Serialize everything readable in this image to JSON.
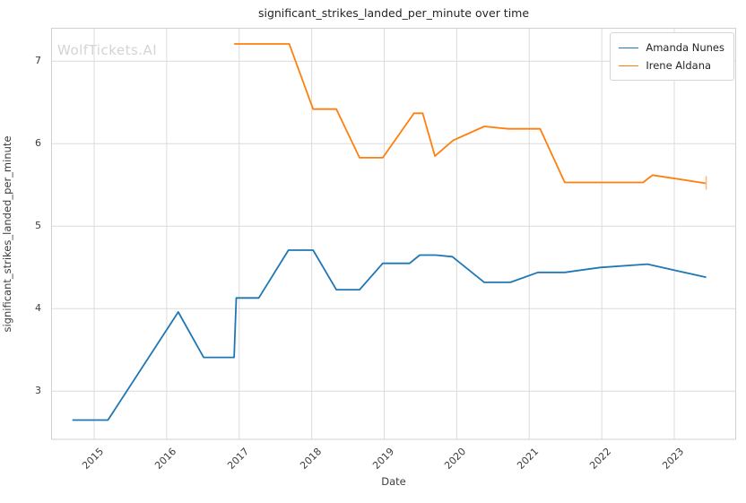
{
  "watermark": "WolfTickets.AI",
  "colors": {
    "series_blue": "#1f77b4",
    "series_orange": "#ff7f0e",
    "grid": "#dcdcdc",
    "spine": "#d0d0d0",
    "end_cap_orange": "#ffb97c"
  },
  "chart_data": {
    "type": "line",
    "title": "significant_strikes_landed_per_minute over time",
    "xlabel": "Date",
    "ylabel": "significant_strikes_landed_per_minute",
    "x_ticks": [
      2015,
      2016,
      2017,
      2018,
      2019,
      2020,
      2021,
      2022,
      2023
    ],
    "y_ticks": [
      3,
      4,
      5,
      6,
      7
    ],
    "xlim": [
      2014.4,
      2023.85
    ],
    "ylim": [
      2.42,
      7.41
    ],
    "grid": true,
    "legend_position": "upper right",
    "series": [
      {
        "name": "Amanda Nunes",
        "color": "#1f77b4",
        "points": [
          [
            2014.7,
            2.65
          ],
          [
            2015.19,
            2.65
          ],
          [
            2016.16,
            3.96
          ],
          [
            2016.51,
            3.41
          ],
          [
            2016.93,
            3.41
          ],
          [
            2016.96,
            4.13
          ],
          [
            2017.27,
            4.13
          ],
          [
            2017.68,
            4.71
          ],
          [
            2018.02,
            4.71
          ],
          [
            2018.34,
            4.23
          ],
          [
            2018.66,
            4.23
          ],
          [
            2018.98,
            4.55
          ],
          [
            2019.35,
            4.55
          ],
          [
            2019.49,
            4.65
          ],
          [
            2019.71,
            4.65
          ],
          [
            2019.94,
            4.63
          ],
          [
            2020.38,
            4.32
          ],
          [
            2020.74,
            4.32
          ],
          [
            2021.12,
            4.44
          ],
          [
            2021.49,
            4.44
          ],
          [
            2021.98,
            4.5
          ],
          [
            2022.63,
            4.54
          ],
          [
            2023.44,
            4.38
          ]
        ]
      },
      {
        "name": "Irene Aldana",
        "color": "#ff7f0e",
        "end_cap": true,
        "points": [
          [
            2016.93,
            7.21
          ],
          [
            2017.69,
            7.21
          ],
          [
            2018.02,
            6.42
          ],
          [
            2018.34,
            6.42
          ],
          [
            2018.66,
            5.83
          ],
          [
            2018.98,
            5.83
          ],
          [
            2019.41,
            6.37
          ],
          [
            2019.53,
            6.37
          ],
          [
            2019.7,
            5.85
          ],
          [
            2019.95,
            6.04
          ],
          [
            2020.38,
            6.21
          ],
          [
            2020.71,
            6.18
          ],
          [
            2021.15,
            6.18
          ],
          [
            2021.49,
            5.53
          ],
          [
            2022.57,
            5.53
          ],
          [
            2022.7,
            5.62
          ],
          [
            2023.44,
            5.52
          ]
        ]
      }
    ]
  }
}
